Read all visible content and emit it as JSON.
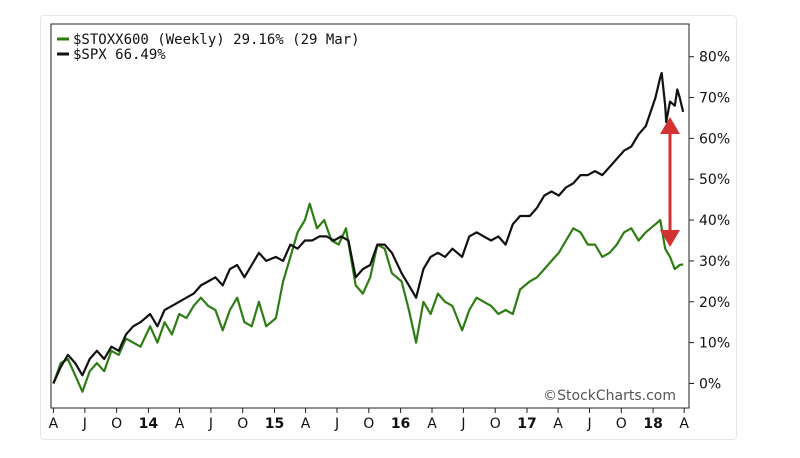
{
  "chart_data": {
    "type": "line",
    "y_unit": "%",
    "ylim": [
      -6,
      88
    ],
    "y_ticks": [
      0,
      10,
      20,
      30,
      40,
      50,
      60,
      70,
      80
    ],
    "y_tick_labels": [
      "0%",
      "10%",
      "20%",
      "30%",
      "40%",
      "50%",
      "60%",
      "70%",
      "80%"
    ],
    "x_tick_labels": [
      "A",
      "J",
      "O",
      "14",
      "A",
      "J",
      "O",
      "15",
      "A",
      "J",
      "O",
      "16",
      "A",
      "J",
      "O",
      "17",
      "A",
      "J",
      "O",
      "18",
      "A"
    ],
    "x_tick_dates": [
      "2013-04",
      "2013-07",
      "2013-10",
      "2014-01",
      "2014-04",
      "2014-07",
      "2014-10",
      "2015-01",
      "2015-04",
      "2015-07",
      "2015-10",
      "2016-01",
      "2016-04",
      "2016-07",
      "2016-10",
      "2017-01",
      "2017-04",
      "2017-07",
      "2017-10",
      "2018-01",
      "2018-04"
    ],
    "x_bold_labels": [
      "14",
      "15",
      "16",
      "17",
      "18"
    ],
    "grid": false,
    "legend_position": "top-left",
    "watermark": "©StockCharts.com",
    "annotation": "red double-headed arrow marking the gap between the two series",
    "series": [
      {
        "name": "$STOXX600 (Weekly) 29.16% (29 Mar)",
        "color": "#2e7d14",
        "points": [
          [
            "2013-04-01",
            0
          ],
          [
            "2013-04-22",
            5
          ],
          [
            "2013-05-13",
            6
          ],
          [
            "2013-06-03",
            2
          ],
          [
            "2013-06-24",
            -2
          ],
          [
            "2013-07-15",
            3
          ],
          [
            "2013-08-05",
            5
          ],
          [
            "2013-08-26",
            3
          ],
          [
            "2013-09-16",
            8
          ],
          [
            "2013-10-07",
            7
          ],
          [
            "2013-10-28",
            11
          ],
          [
            "2013-11-18",
            10
          ],
          [
            "2013-12-09",
            9
          ],
          [
            "2014-01-06",
            14
          ],
          [
            "2014-01-27",
            10
          ],
          [
            "2014-02-17",
            15
          ],
          [
            "2014-03-10",
            12
          ],
          [
            "2014-03-31",
            17
          ],
          [
            "2014-04-21",
            16
          ],
          [
            "2014-05-12",
            19
          ],
          [
            "2014-06-02",
            21
          ],
          [
            "2014-06-23",
            19
          ],
          [
            "2014-07-14",
            18
          ],
          [
            "2014-08-04",
            13
          ],
          [
            "2014-08-25",
            18
          ],
          [
            "2014-09-15",
            21
          ],
          [
            "2014-10-06",
            15
          ],
          [
            "2014-10-27",
            14
          ],
          [
            "2014-11-17",
            20
          ],
          [
            "2014-12-08",
            14
          ],
          [
            "2015-01-05",
            16
          ],
          [
            "2015-01-26",
            25
          ],
          [
            "2015-02-16",
            31
          ],
          [
            "2015-03-09",
            37
          ],
          [
            "2015-03-30",
            40
          ],
          [
            "2015-04-13",
            44
          ],
          [
            "2015-05-04",
            38
          ],
          [
            "2015-05-25",
            40
          ],
          [
            "2015-06-15",
            35
          ],
          [
            "2015-07-06",
            34
          ],
          [
            "2015-07-27",
            38
          ],
          [
            "2015-08-24",
            24
          ],
          [
            "2015-09-14",
            22
          ],
          [
            "2015-10-05",
            26
          ],
          [
            "2015-10-26",
            34
          ],
          [
            "2015-11-16",
            33
          ],
          [
            "2015-12-07",
            27
          ],
          [
            "2016-01-04",
            25
          ],
          [
            "2016-01-25",
            18
          ],
          [
            "2016-02-15",
            10
          ],
          [
            "2016-03-07",
            20
          ],
          [
            "2016-03-28",
            17
          ],
          [
            "2016-04-18",
            22
          ],
          [
            "2016-05-09",
            20
          ],
          [
            "2016-05-30",
            19
          ],
          [
            "2016-06-27",
            13
          ],
          [
            "2016-07-18",
            18
          ],
          [
            "2016-08-08",
            21
          ],
          [
            "2016-08-29",
            20
          ],
          [
            "2016-09-19",
            19
          ],
          [
            "2016-10-10",
            17
          ],
          [
            "2016-10-31",
            18
          ],
          [
            "2016-11-21",
            17
          ],
          [
            "2016-12-12",
            23
          ],
          [
            "2017-01-09",
            25
          ],
          [
            "2017-01-30",
            26
          ],
          [
            "2017-02-20",
            28
          ],
          [
            "2017-03-13",
            30
          ],
          [
            "2017-04-03",
            32
          ],
          [
            "2017-04-24",
            35
          ],
          [
            "2017-05-15",
            38
          ],
          [
            "2017-06-05",
            37
          ],
          [
            "2017-06-26",
            34
          ],
          [
            "2017-07-17",
            34
          ],
          [
            "2017-08-07",
            31
          ],
          [
            "2017-08-28",
            32
          ],
          [
            "2017-09-18",
            34
          ],
          [
            "2017-10-09",
            37
          ],
          [
            "2017-10-30",
            38
          ],
          [
            "2017-11-20",
            35
          ],
          [
            "2017-12-11",
            37
          ],
          [
            "2018-01-08",
            39
          ],
          [
            "2018-01-22",
            40
          ],
          [
            "2018-02-05",
            33
          ],
          [
            "2018-02-19",
            31
          ],
          [
            "2018-03-05",
            28
          ],
          [
            "2018-03-19",
            29
          ],
          [
            "2018-03-29",
            29.16
          ]
        ]
      },
      {
        "name": "$SPX 66.49%",
        "color": "#111111",
        "points": [
          [
            "2013-04-01",
            0
          ],
          [
            "2013-04-22",
            4
          ],
          [
            "2013-05-13",
            7
          ],
          [
            "2013-06-03",
            5
          ],
          [
            "2013-06-24",
            2
          ],
          [
            "2013-07-15",
            6
          ],
          [
            "2013-08-05",
            8
          ],
          [
            "2013-08-26",
            6
          ],
          [
            "2013-09-16",
            9
          ],
          [
            "2013-10-07",
            8
          ],
          [
            "2013-10-28",
            12
          ],
          [
            "2013-11-18",
            14
          ],
          [
            "2013-12-09",
            15
          ],
          [
            "2014-01-06",
            17
          ],
          [
            "2014-01-27",
            14
          ],
          [
            "2014-02-17",
            18
          ],
          [
            "2014-03-10",
            19
          ],
          [
            "2014-03-31",
            20
          ],
          [
            "2014-04-21",
            21
          ],
          [
            "2014-05-12",
            22
          ],
          [
            "2014-06-02",
            24
          ],
          [
            "2014-06-23",
            25
          ],
          [
            "2014-07-14",
            26
          ],
          [
            "2014-08-04",
            24
          ],
          [
            "2014-08-25",
            28
          ],
          [
            "2014-09-15",
            29
          ],
          [
            "2014-10-06",
            26
          ],
          [
            "2014-10-27",
            29
          ],
          [
            "2014-11-17",
            32
          ],
          [
            "2014-12-08",
            30
          ],
          [
            "2015-01-05",
            31
          ],
          [
            "2015-01-26",
            30
          ],
          [
            "2015-02-16",
            34
          ],
          [
            "2015-03-09",
            33
          ],
          [
            "2015-03-30",
            35
          ],
          [
            "2015-04-20",
            35
          ],
          [
            "2015-05-11",
            36
          ],
          [
            "2015-06-01",
            36
          ],
          [
            "2015-06-22",
            35
          ],
          [
            "2015-07-13",
            36
          ],
          [
            "2015-08-03",
            35
          ],
          [
            "2015-08-24",
            26
          ],
          [
            "2015-09-14",
            28
          ],
          [
            "2015-10-05",
            29
          ],
          [
            "2015-10-26",
            34
          ],
          [
            "2015-11-16",
            34
          ],
          [
            "2015-12-07",
            32
          ],
          [
            "2016-01-04",
            27
          ],
          [
            "2016-01-25",
            24
          ],
          [
            "2016-02-15",
            21
          ],
          [
            "2016-03-07",
            28
          ],
          [
            "2016-03-28",
            31
          ],
          [
            "2016-04-18",
            32
          ],
          [
            "2016-05-09",
            31
          ],
          [
            "2016-05-30",
            33
          ],
          [
            "2016-06-27",
            31
          ],
          [
            "2016-07-18",
            36
          ],
          [
            "2016-08-08",
            37
          ],
          [
            "2016-08-29",
            36
          ],
          [
            "2016-09-19",
            35
          ],
          [
            "2016-10-10",
            36
          ],
          [
            "2016-10-31",
            34
          ],
          [
            "2016-11-21",
            39
          ],
          [
            "2016-12-12",
            41
          ],
          [
            "2017-01-09",
            41
          ],
          [
            "2017-01-30",
            43
          ],
          [
            "2017-02-20",
            46
          ],
          [
            "2017-03-13",
            47
          ],
          [
            "2017-04-03",
            46
          ],
          [
            "2017-04-24",
            48
          ],
          [
            "2017-05-15",
            49
          ],
          [
            "2017-06-05",
            51
          ],
          [
            "2017-06-26",
            51
          ],
          [
            "2017-07-17",
            52
          ],
          [
            "2017-08-07",
            51
          ],
          [
            "2017-08-28",
            53
          ],
          [
            "2017-09-18",
            55
          ],
          [
            "2017-10-09",
            57
          ],
          [
            "2017-10-30",
            58
          ],
          [
            "2017-11-20",
            61
          ],
          [
            "2017-12-11",
            63
          ],
          [
            "2018-01-08",
            70
          ],
          [
            "2018-01-22",
            75
          ],
          [
            "2018-01-26",
            76
          ],
          [
            "2018-02-05",
            68
          ],
          [
            "2018-02-08",
            64
          ],
          [
            "2018-02-19",
            69
          ],
          [
            "2018-03-05",
            68
          ],
          [
            "2018-03-12",
            72
          ],
          [
            "2018-03-19",
            70
          ],
          [
            "2018-03-29",
            66.49
          ]
        ]
      }
    ]
  }
}
